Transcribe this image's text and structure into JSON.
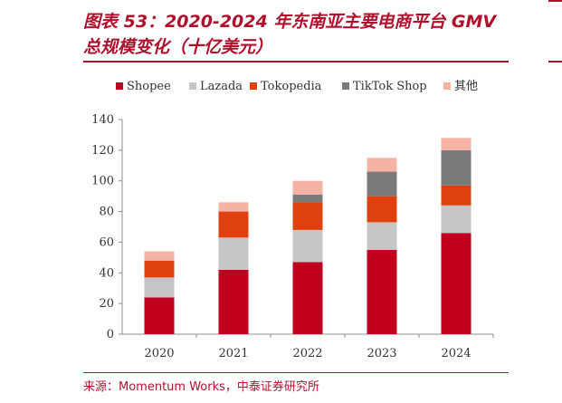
{
  "title": "图表 53：2020-2024 年东南亚主要电商平台 GMV 总规模变化（十亿美元）",
  "source": "来源：Momentum Works，中泰证券研究所",
  "chart_data": {
    "type": "bar",
    "stacked": true,
    "categories": [
      "2020",
      "2021",
      "2022",
      "2023",
      "2024"
    ],
    "series": [
      {
        "name": "Shopee",
        "color": "#c0001e",
        "values": [
          24,
          42,
          47,
          55,
          66
        ]
      },
      {
        "name": "Lazada",
        "color": "#c6c6c6",
        "values": [
          13,
          21,
          21,
          18,
          18
        ]
      },
      {
        "name": "Tokopedia",
        "color": "#e0400e",
        "values": [
          11,
          17,
          18,
          17,
          13
        ]
      },
      {
        "name": "TikTok Shop",
        "color": "#7a7a7a",
        "values": [
          0,
          0,
          5,
          16,
          23
        ]
      },
      {
        "name": "其他",
        "color": "#f4b3a3",
        "values": [
          6,
          6,
          9,
          9,
          8
        ]
      }
    ],
    "ylim": [
      0,
      140
    ],
    "yticks": [
      0,
      20,
      40,
      60,
      80,
      100,
      120,
      140
    ],
    "legend_position": "top",
    "grid": false
  }
}
